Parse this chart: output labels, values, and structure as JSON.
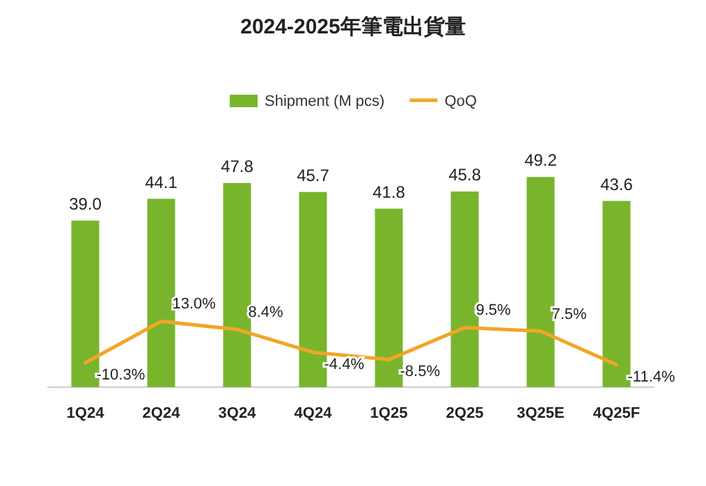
{
  "chart_data": {
    "type": "bar",
    "title": "2024-2025年筆電出貨量",
    "categories": [
      "1Q24",
      "2Q24",
      "3Q24",
      "4Q24",
      "1Q25",
      "2Q25",
      "3Q25E",
      "4Q25F"
    ],
    "series": [
      {
        "name": "Shipment (M pcs)",
        "color": "#78b52d",
        "values": [
          39.0,
          44.1,
          47.8,
          45.7,
          41.8,
          45.8,
          49.2,
          43.6
        ],
        "value_labels": [
          "39.0",
          "44.1",
          "47.8",
          "45.7",
          "41.8",
          "45.8",
          "49.2",
          "43.6"
        ]
      },
      {
        "name": "QoQ",
        "type": "line",
        "axis": "y2",
        "color": "#f2a528",
        "values": [
          -10.3,
          13.0,
          8.4,
          -4.4,
          -8.5,
          9.5,
          7.5,
          -11.4
        ],
        "value_labels": [
          "-10.3%",
          "13.0%",
          "8.4%",
          "-4.4%",
          "-8.5%",
          "9.5%",
          "7.5%",
          "-11.4%"
        ]
      }
    ],
    "legend": "top",
    "grid": false
  }
}
